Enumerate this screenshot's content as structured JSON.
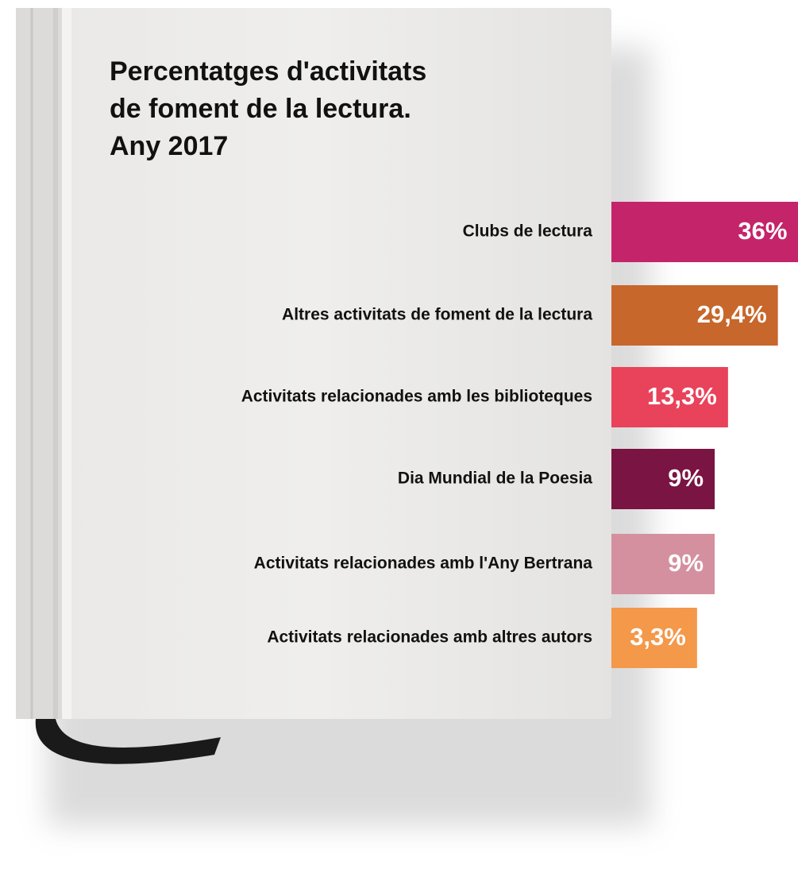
{
  "chart_data": {
    "type": "bar",
    "orientation": "horizontal",
    "title": [
      "Percentatges d'activitats",
      "de foment de la lectura.",
      "Any 2017"
    ],
    "categories": [
      "Clubs de lectura",
      "Altres activitats de foment de la lectura",
      "Activitats relacionades amb les biblioteques",
      "Dia Mundial de la Poesia",
      "Activitats relacionades amb l'Any Bertrana",
      "Activitats relacionades amb altres autors"
    ],
    "values": [
      36,
      29.4,
      13.3,
      9,
      9,
      3.3
    ],
    "value_labels": [
      "36%",
      "29,4%",
      "13,3%",
      "9%",
      "9%",
      "3,3%"
    ],
    "colors": [
      "#c4246a",
      "#c7672b",
      "#e8435a",
      "#7a1442",
      "#d4909f",
      "#f4984a"
    ]
  }
}
